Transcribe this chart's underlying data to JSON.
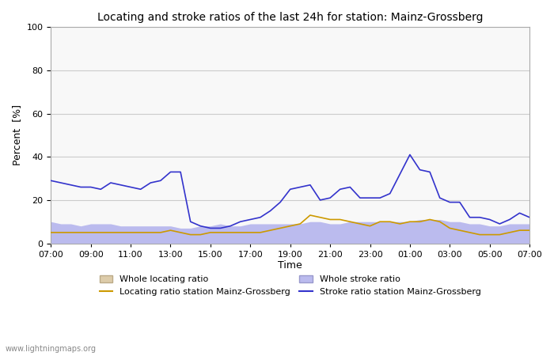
{
  "title": "Locating and stroke ratios of the last 24h for station: Mainz-Grossberg",
  "xlabel": "Time",
  "ylabel": "Percent  [%]",
  "watermark": "www.lightningmaps.org",
  "ylim": [
    0,
    100
  ],
  "yticks": [
    0,
    20,
    40,
    60,
    80,
    100
  ],
  "time_labels": [
    "07:00",
    "09:00",
    "11:00",
    "13:00",
    "15:00",
    "17:00",
    "19:00",
    "21:00",
    "23:00",
    "01:00",
    "03:00",
    "05:00",
    "07:00"
  ],
  "x": [
    0,
    1,
    2,
    3,
    4,
    5,
    6,
    7,
    8,
    9,
    10,
    11,
    12,
    13,
    14,
    15,
    16,
    17,
    18,
    19,
    20,
    21,
    22,
    23,
    24,
    25,
    26,
    27,
    28,
    29,
    30,
    31,
    32,
    33,
    34,
    35,
    36,
    37,
    38,
    39,
    40,
    41,
    42,
    43,
    44,
    45,
    46,
    47,
    48
  ],
  "stroke_ratio_station": [
    29,
    28,
    27,
    26,
    26,
    25,
    28,
    27,
    26,
    25,
    28,
    29,
    33,
    33,
    10,
    8,
    7,
    7,
    8,
    10,
    11,
    12,
    15,
    19,
    25,
    26,
    27,
    20,
    21,
    25,
    26,
    21,
    21,
    21,
    23,
    32,
    41,
    34,
    33,
    21,
    19,
    19,
    12,
    12,
    11,
    9,
    11,
    14,
    12
  ],
  "locating_ratio_station": [
    5,
    5,
    5,
    5,
    5,
    5,
    5,
    5,
    5,
    5,
    5,
    5,
    6,
    5,
    4,
    4,
    5,
    5,
    5,
    5,
    5,
    5,
    6,
    7,
    8,
    9,
    13,
    12,
    11,
    11,
    10,
    9,
    8,
    10,
    10,
    9,
    10,
    10,
    11,
    10,
    7,
    6,
    5,
    4,
    4,
    4,
    5,
    6,
    6
  ],
  "whole_stroke_ratio": [
    10,
    9,
    9,
    8,
    9,
    9,
    9,
    8,
    8,
    8,
    8,
    8,
    8,
    7,
    7,
    8,
    8,
    9,
    8,
    8,
    9,
    9,
    9,
    9,
    9,
    9,
    10,
    10,
    9,
    9,
    10,
    10,
    10,
    10,
    10,
    10,
    10,
    11,
    11,
    11,
    10,
    10,
    9,
    9,
    8,
    8,
    9,
    9,
    9
  ],
  "whole_locating_ratio": [
    4,
    4,
    4,
    4,
    4,
    4,
    4,
    4,
    4,
    4,
    4,
    4,
    3,
    3,
    3,
    3,
    3,
    3,
    3,
    3,
    3,
    3,
    3,
    3,
    4,
    4,
    4,
    4,
    4,
    4,
    4,
    4,
    4,
    4,
    4,
    4,
    4,
    4,
    4,
    4,
    3,
    3,
    3,
    3,
    3,
    3,
    3,
    3,
    3
  ],
  "stroke_station_color": "#3333cc",
  "locating_station_color": "#cc9900",
  "whole_stroke_fill_color": "#bbbbee",
  "whole_locating_fill_color": "#ddccaa",
  "bg_color": "#ffffff",
  "plot_bg_color": "#f8f8f8",
  "grid_color": "#cccccc",
  "legend_entries": [
    "Whole locating ratio",
    "Locating ratio station Mainz-Grossberg",
    "Whole stroke ratio",
    "Stroke ratio station Mainz-Grossberg"
  ]
}
